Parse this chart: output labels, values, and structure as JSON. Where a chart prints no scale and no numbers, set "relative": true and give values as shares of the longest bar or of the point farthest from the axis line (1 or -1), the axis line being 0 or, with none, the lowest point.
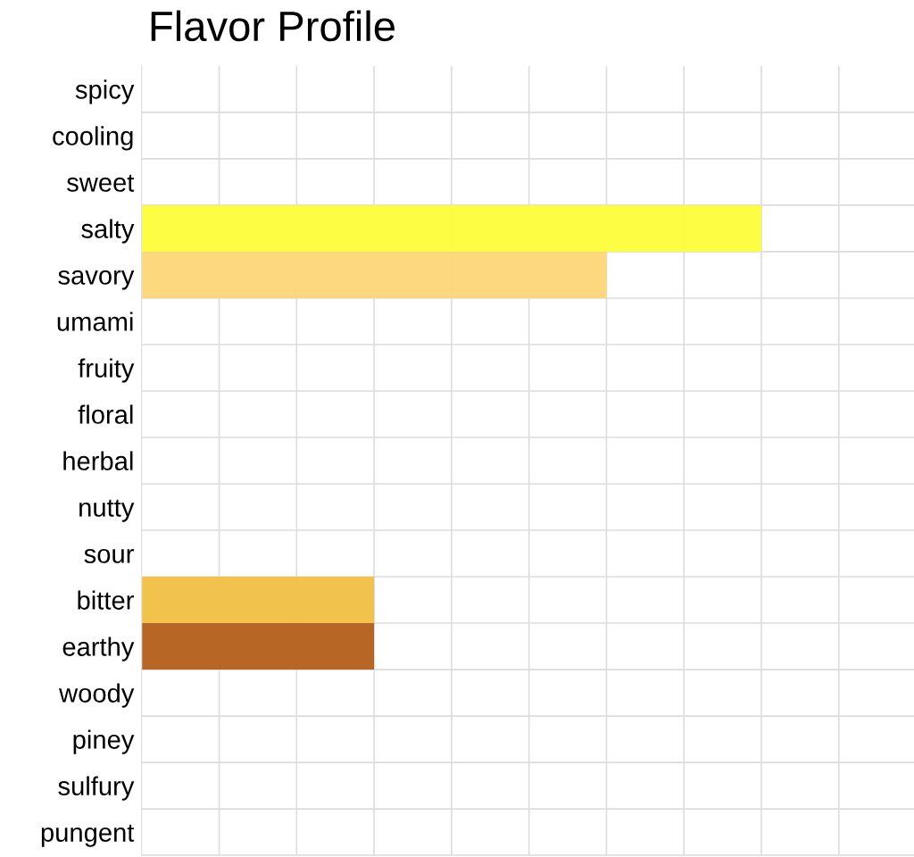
{
  "chart_data": {
    "type": "bar",
    "title": "Flavor Profile",
    "orientation": "horizontal",
    "relative": true,
    "grid": true,
    "tick_labels": "y",
    "categories": [
      "spicy",
      "cooling",
      "sweet",
      "salty",
      "savory",
      "umami",
      "fruity",
      "floral",
      "herbal",
      "nutty",
      "sour",
      "bitter",
      "earthy",
      "woody",
      "piney",
      "sulfury",
      "pungent"
    ],
    "values": [
      0,
      0,
      0,
      1,
      0.75,
      0,
      0,
      0,
      0,
      0,
      0,
      0.375,
      0.375,
      0,
      0,
      0,
      0
    ],
    "colors": [
      "#cccccc",
      "#cccccc",
      "#cccccc",
      "#fdfd3a",
      "#fdd677",
      "#cccccc",
      "#cccccc",
      "#cccccc",
      "#cccccc",
      "#cccccc",
      "#cccccc",
      "#f0c043",
      "#b35e19",
      "#cccccc",
      "#cccccc",
      "#cccccc",
      "#cccccc"
    ]
  }
}
